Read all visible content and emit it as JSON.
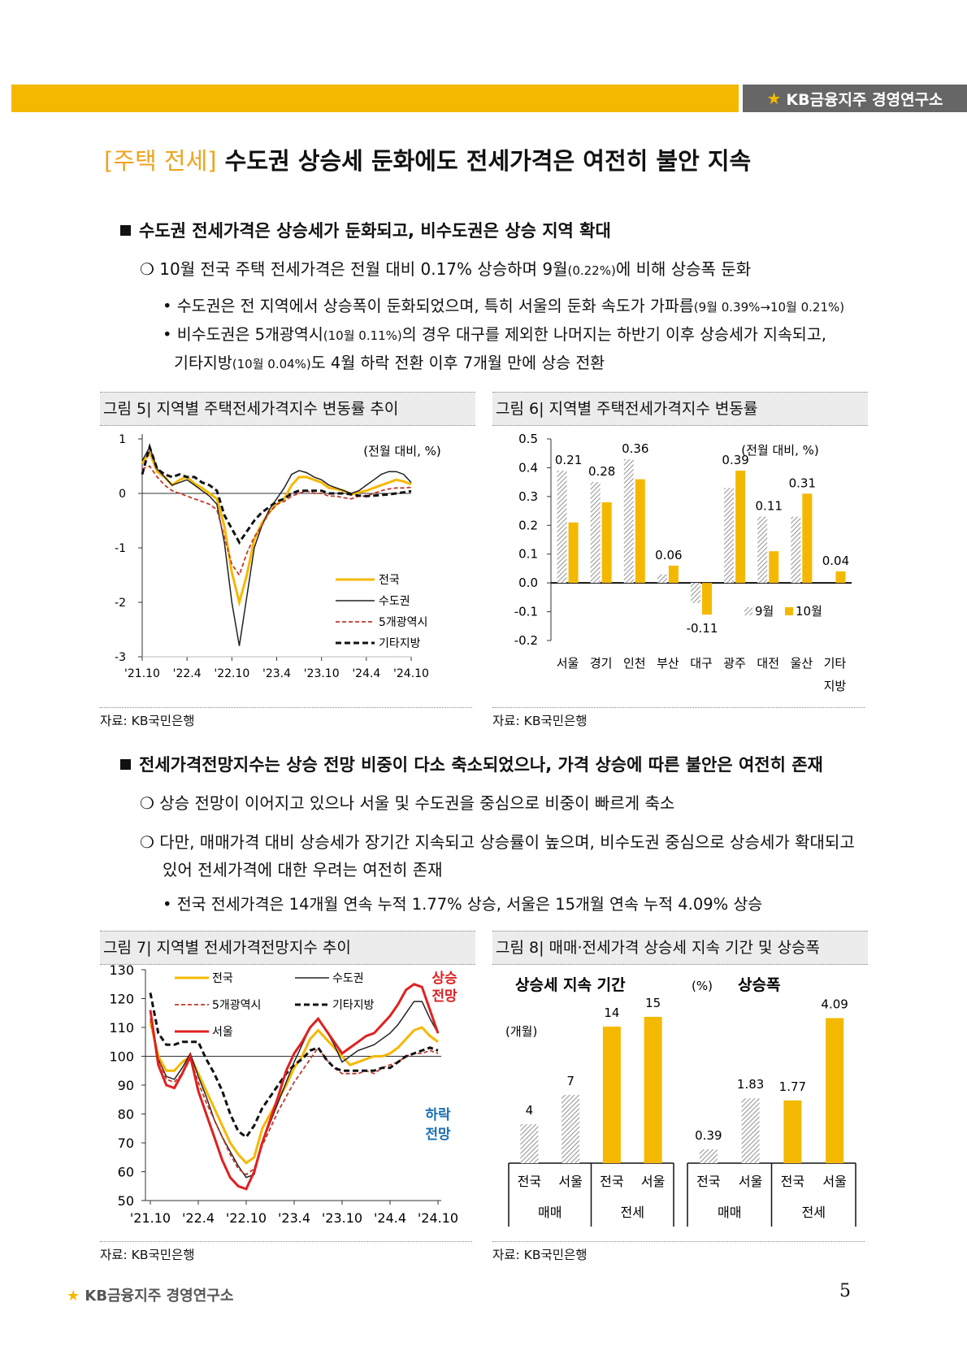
{
  "header": {
    "brand": "KB금융지주 경영연구소"
  },
  "title": {
    "tag": "[주택 전세]",
    "text": " 수도권 상승세 둔화에도 전세가격은 여전히 불안 지속"
  },
  "s1": {
    "heading": "수도권 전세가격은 상승세가 둔화되고, 비수도권은 상승 지역 확대",
    "b1a": "10월 전국 주택 전세가격은 전월 대비 0.17% 상승하며 9월",
    "b1s": "(0.22%)",
    "b1b": "에 비해 상승폭 둔화",
    "d1a": "• 수도권은 전 지역에서 상승폭이 둔화되었으며, 특히 서울의 둔화 속도가 가파름",
    "d1s": "(9월 0.39%→10월 0.21%)",
    "d2a": "• 비수도권은 5개광역시",
    "d2s": "(10월 0.11%)",
    "d2b": "의 경우 대구를 제외한 나머지는 하반기 이후 상승세가 지속되고,",
    "d3a": "기타지방",
    "d3s": "(10월 0.04%)",
    "d3b": "도 4월 하락 전환 이후 7개월 만에 상승 전환"
  },
  "s2": {
    "heading": "전세가격전망지수는 상승 전망 비중이 다소 축소되었으나, 가격 상승에 따른 불안은 여전히 존재",
    "b1": "상승 전망이 이어지고 있으나 서울 및 수도권을 중심으로 비중이 빠르게 축소",
    "b2a": "다만, 매매가격 대비 상승세가 장기간 지속되고 상승률이 높으며, 비수도권 중심으로 상승세가 확대되고",
    "b2b": "있어 전세가격에 대한 우려는 여전히 존재",
    "d1": "• 전국 전세가격은 14개월 연속 누적 1.77% 상승, 서울은 15개월 연속 누적 4.09% 상승"
  },
  "fig5": {
    "caption": "그림 5| 지역별 주택전세가격지수 변동률 추이",
    "source": "자료: KB국민은행"
  },
  "fig6": {
    "caption": "그림 6| 지역별 주택전세가격지수 변동률",
    "source": "자료: KB국민은행"
  },
  "fig7": {
    "caption": "그림 7| 지역별 전세가격전망지수 추이",
    "source": "자료: KB국민은행"
  },
  "fig8": {
    "caption": "그림 8| 매매·전세가격 상승세 지속 기간 및 상승폭",
    "source": "자료: KB국민은행"
  },
  "footer": {
    "brand": "KB금융지주 경영연구소",
    "page": "5"
  },
  "colors": {
    "accent": "#f5b800",
    "national": "#f5b800",
    "capital": "#222222",
    "metro": "#c0392b",
    "other": "#111111",
    "seoul": "#e02020",
    "up": "#e02020",
    "down": "#1a6fb5"
  },
  "chart_data": [
    {
      "type": "line",
      "annotation": "(전월 대비, %)",
      "xticks": [
        "'21.10",
        "'22.4",
        "'22.10",
        "'23.4",
        "'23.10",
        "'24.4",
        "'24.10"
      ],
      "yticks": [
        "1",
        "0",
        "-1",
        "-2",
        "-3"
      ],
      "ylim": [
        -3,
        1
      ],
      "x": [
        "2021-10",
        "2021-11",
        "2021-12",
        "2022-01",
        "2022-02",
        "2022-03",
        "2022-04",
        "2022-05",
        "2022-06",
        "2022-07",
        "2022-08",
        "2022-09",
        "2022-10",
        "2022-11",
        "2022-12",
        "2023-01",
        "2023-02",
        "2023-03",
        "2023-04",
        "2023-05",
        "2023-06",
        "2023-07",
        "2023-08",
        "2023-09",
        "2023-10",
        "2023-11",
        "2023-12",
        "2024-01",
        "2024-02",
        "2024-03",
        "2024-04",
        "2024-05",
        "2024-06",
        "2024-07",
        "2024-08",
        "2024-09",
        "2024-10"
      ],
      "series": [
        {
          "name": "전국",
          "color": "#f5b800",
          "dash": "",
          "width": 3,
          "values": [
            0.55,
            0.75,
            0.4,
            0.3,
            0.15,
            0.25,
            0.3,
            0.18,
            0.1,
            0.0,
            -0.1,
            -0.6,
            -1.45,
            -2.0,
            -1.5,
            -0.85,
            -0.55,
            -0.35,
            -0.2,
            -0.1,
            0.15,
            0.3,
            0.3,
            0.25,
            0.2,
            0.1,
            0.08,
            0.05,
            -0.02,
            0.02,
            0.05,
            0.1,
            0.15,
            0.2,
            0.25,
            0.22,
            0.17
          ]
        },
        {
          "name": "수도권",
          "color": "#222222",
          "dash": "",
          "width": 1.5,
          "values": [
            0.6,
            0.85,
            0.45,
            0.3,
            0.15,
            0.2,
            0.25,
            0.15,
            0.05,
            -0.05,
            -0.2,
            -0.9,
            -2.0,
            -2.8,
            -1.9,
            -1.0,
            -0.6,
            -0.3,
            -0.1,
            0.1,
            0.35,
            0.42,
            0.38,
            0.3,
            0.25,
            0.15,
            0.1,
            0.05,
            0.0,
            0.05,
            0.15,
            0.25,
            0.35,
            0.4,
            0.4,
            0.35,
            0.2
          ]
        },
        {
          "name": "5개광역시",
          "color": "#c0392b",
          "dash": "5,3",
          "width": 1.8,
          "values": [
            0.45,
            0.5,
            0.3,
            0.15,
            0.05,
            0.0,
            -0.05,
            -0.1,
            -0.15,
            -0.2,
            -0.3,
            -0.8,
            -1.3,
            -1.5,
            -1.1,
            -0.8,
            -0.6,
            -0.35,
            -0.2,
            -0.15,
            -0.05,
            0.0,
            0.05,
            0.0,
            0.0,
            -0.05,
            -0.05,
            -0.08,
            -0.1,
            -0.05,
            -0.05,
            0.0,
            0.05,
            0.08,
            0.1,
            0.1,
            0.11
          ]
        },
        {
          "name": "기타지방",
          "color": "#111111",
          "dash": "7,4",
          "width": 3,
          "values": [
            0.35,
            0.85,
            0.45,
            0.35,
            0.3,
            0.35,
            0.3,
            0.3,
            0.2,
            0.15,
            0.05,
            -0.4,
            -0.65,
            -0.9,
            -0.7,
            -0.5,
            -0.35,
            -0.25,
            -0.15,
            -0.1,
            0.0,
            0.05,
            0.05,
            0.05,
            0.05,
            0.0,
            0.0,
            0.0,
            -0.02,
            -0.04,
            -0.05,
            -0.04,
            -0.03,
            -0.02,
            0.0,
            0.02,
            0.04
          ]
        }
      ]
    },
    {
      "type": "bar",
      "annotation": "(전월 대비, %)",
      "categories": [
        [
          "서울"
        ],
        [
          "경기"
        ],
        [
          "인천"
        ],
        [
          "부산"
        ],
        [
          "대구"
        ],
        [
          "광주"
        ],
        [
          "대전"
        ],
        [
          "울산"
        ],
        [
          "기타",
          "지방"
        ]
      ],
      "yticks": [
        "0.5",
        "0.4",
        "0.3",
        "0.2",
        "0.1",
        "0.0",
        "-0.1",
        "-0.2"
      ],
      "ylim": [
        -0.2,
        0.5
      ],
      "series": [
        {
          "name": "9월",
          "values": [
            0.39,
            0.35,
            0.43,
            0.03,
            -0.07,
            0.33,
            0.23,
            0.23,
            0.0
          ],
          "pattern": "hatch"
        },
        {
          "name": "10월",
          "values": [
            0.21,
            0.28,
            0.36,
            0.06,
            -0.11,
            0.39,
            0.11,
            0.31,
            0.04
          ],
          "color": "#f5b800",
          "labels": [
            "0.21",
            "0.28",
            "0.36",
            "0.06",
            "-0.11",
            "0.39",
            "0.11",
            "0.31",
            "0.04"
          ]
        }
      ]
    },
    {
      "type": "line",
      "xticks": [
        "'21.10",
        "'22.4",
        "'22.10",
        "'23.4",
        "'23.10",
        "'24.4",
        "'24.10"
      ],
      "yticks": [
        "130",
        "120",
        "110",
        "100",
        "90",
        "80",
        "70",
        "60",
        "50"
      ],
      "ylim": [
        50,
        130
      ],
      "ref_value": 100,
      "up_label": [
        "상승",
        "전망"
      ],
      "down_label": [
        "하락",
        "전망"
      ],
      "x": [
        "2021-10",
        "2021-11",
        "2021-12",
        "2022-01",
        "2022-02",
        "2022-03",
        "2022-04",
        "2022-05",
        "2022-06",
        "2022-07",
        "2022-08",
        "2022-09",
        "2022-10",
        "2022-11",
        "2022-12",
        "2023-01",
        "2023-02",
        "2023-03",
        "2023-04",
        "2023-05",
        "2023-06",
        "2023-07",
        "2023-08",
        "2023-09",
        "2023-10",
        "2023-11",
        "2023-12",
        "2024-01",
        "2024-02",
        "2024-03",
        "2024-04",
        "2024-05",
        "2024-06",
        "2024-07",
        "2024-08",
        "2024-09",
        "2024-10"
      ],
      "series": [
        {
          "name": "전국",
          "color": "#f5b800",
          "dash": "",
          "width": 3,
          "values": [
            112,
            100,
            95,
            95,
            98,
            100,
            94,
            88,
            82,
            76,
            70,
            66,
            63,
            65,
            75,
            80,
            85,
            90,
            96,
            100,
            106,
            109,
            106,
            103,
            100,
            97,
            98,
            99,
            100,
            100,
            101,
            103,
            106,
            109,
            110,
            107,
            105
          ]
        },
        {
          "name": "수도권",
          "color": "#222222",
          "dash": "",
          "width": 1.5,
          "values": [
            115,
            99,
            93,
            92,
            96,
            101,
            93,
            86,
            78,
            72,
            67,
            62,
            58,
            59,
            70,
            77,
            84,
            91,
            98,
            104,
            110,
            113,
            109,
            104,
            98,
            100,
            102,
            103,
            104,
            106,
            108,
            111,
            115,
            119,
            119,
            113,
            108
          ]
        },
        {
          "name": "5개광역시",
          "color": "#c0392b",
          "dash": "5,3",
          "width": 1.8,
          "values": [
            113,
            99,
            92,
            91,
            94,
            99,
            91,
            84,
            78,
            72,
            66,
            61,
            59,
            61,
            69,
            75,
            81,
            86,
            91,
            95,
            99,
            103,
            99,
            96,
            94,
            94,
            94,
            95,
            94,
            96,
            97,
            98,
            100,
            101,
            101,
            102,
            101
          ]
        },
        {
          "name": "기타지방",
          "color": "#111111",
          "dash": "7,4",
          "width": 3,
          "values": [
            122,
            108,
            104,
            104,
            105,
            105,
            105,
            99,
            94,
            88,
            80,
            74,
            72,
            76,
            82,
            86,
            90,
            94,
            97,
            99,
            102,
            103,
            99,
            96,
            95,
            95,
            95,
            95,
            95,
            96,
            96,
            98,
            100,
            101,
            102,
            103,
            102
          ]
        },
        {
          "name": "서울",
          "color": "#e02020",
          "dash": "",
          "width": 3,
          "values": [
            116,
            97,
            90,
            89,
            94,
            100,
            88,
            80,
            72,
            64,
            58,
            55,
            54,
            60,
            70,
            78,
            86,
            95,
            101,
            105,
            110,
            113,
            109,
            105,
            101,
            103,
            105,
            107,
            108,
            111,
            114,
            118,
            123,
            125,
            124,
            116,
            108
          ]
        }
      ]
    },
    {
      "type": "bar",
      "groups": [
        {
          "title": "상승세 지속 기간",
          "unit": "(개월)",
          "ymax": 16,
          "values": [
            4,
            7,
            14,
            15
          ],
          "labels": [
            "4",
            "7",
            "14",
            "15"
          ],
          "cats": [
            "전국",
            "서울",
            "전국",
            "서울"
          ],
          "types": [
            "매매",
            "전세"
          ],
          "patterns": [
            "hatch",
            "hatch",
            "solid",
            "solid"
          ]
        },
        {
          "title": "상승폭",
          "unit": "(%)",
          "ymax": 4.4,
          "values": [
            0.39,
            1.83,
            1.77,
            4.09
          ],
          "labels": [
            "0.39",
            "1.83",
            "1.77",
            "4.09"
          ],
          "cats": [
            "전국",
            "서울",
            "전국",
            "서울"
          ],
          "types": [
            "매매",
            "전세"
          ],
          "patterns": [
            "hatch",
            "hatch",
            "solid",
            "solid"
          ]
        }
      ]
    }
  ]
}
